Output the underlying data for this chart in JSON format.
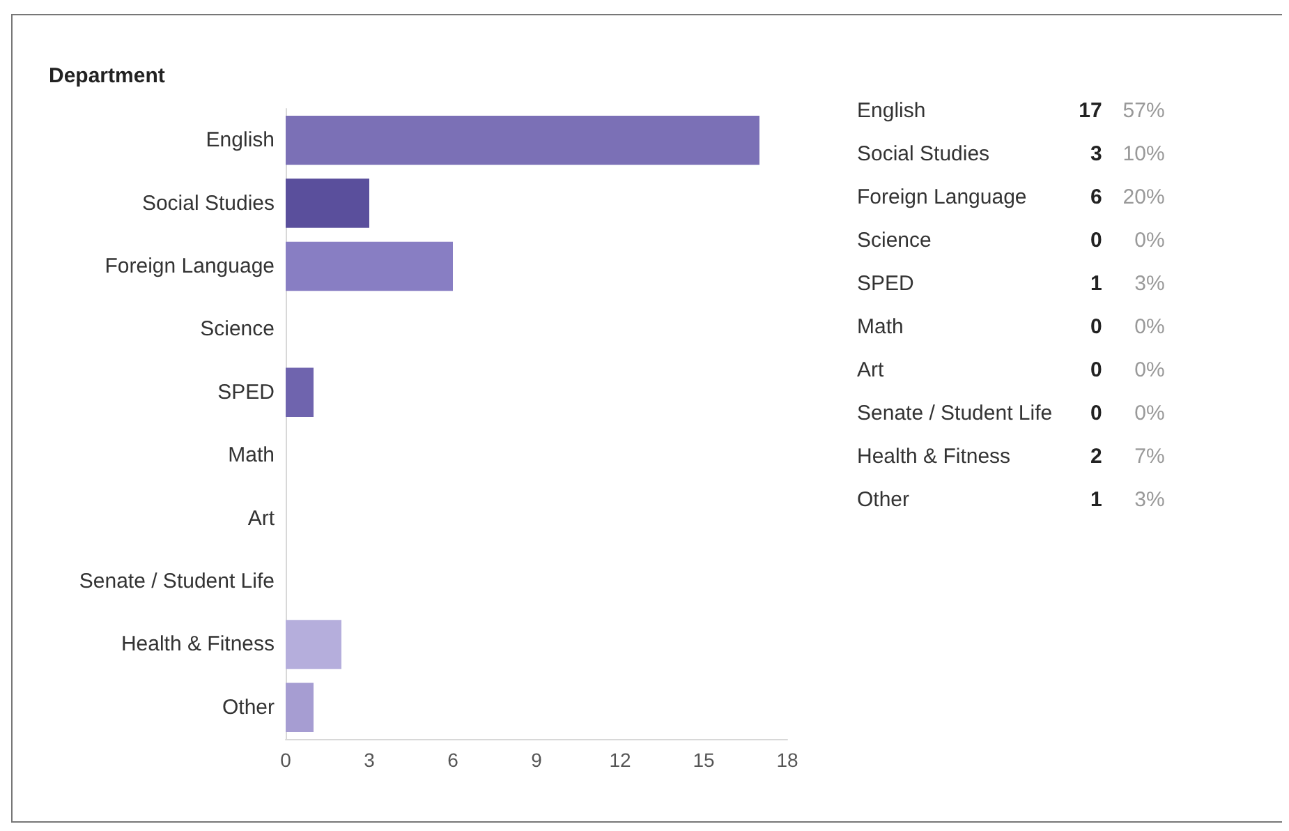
{
  "chart_data": [
    {
      "type": "bar",
      "orientation": "horizontal",
      "title": "Department",
      "categories": [
        "English",
        "Social Studies",
        "Foreign Language",
        "Science",
        "SPED",
        "Math",
        "Art",
        "Senate / Student Life",
        "Health & Fitness",
        "Other"
      ],
      "values": [
        17,
        3,
        6,
        0,
        1,
        0,
        0,
        0,
        2,
        1
      ],
      "colors": [
        "#7b70b6",
        "#5a4f9c",
        "#887ec3",
        "#6c62ab",
        "#6f64ae",
        "#7b70b6",
        "#9b92cc",
        "#7b70b6",
        "#b5aedc",
        "#a69dd2"
      ],
      "xlim": [
        0,
        18
      ],
      "xticks": [
        0,
        3,
        6,
        9,
        12,
        15,
        18
      ],
      "grid": false
    },
    {
      "type": "other",
      "data_labels": true,
      "categories": [
        "English",
        "Social Studies",
        "Foreign Language",
        "Science",
        "SPED",
        "Math",
        "Art",
        "Senate / Student Life",
        "Health & Fitness",
        "Other"
      ],
      "series": [
        {
          "values": [
            17,
            3,
            6,
            0,
            1,
            0,
            0,
            0,
            2,
            1
          ]
        },
        {
          "values": [
            57,
            10,
            20,
            0,
            3,
            0,
            0,
            0,
            7,
            3
          ],
          "value_labels": [
            "57%",
            "10%",
            "20%",
            "0%",
            "3%",
            "0%",
            "0%",
            "0%",
            "7%",
            "3%"
          ]
        }
      ]
    }
  ]
}
